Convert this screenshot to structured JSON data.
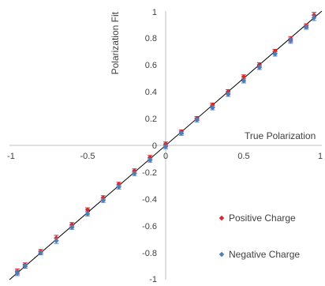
{
  "chart_data": {
    "type": "scatter",
    "title": "",
    "xlabel": "True Polarization",
    "ylabel": "Polarization Fit",
    "xlim": [
      -1,
      1
    ],
    "ylim": [
      -1,
      1
    ],
    "x_ticks": [
      "-1",
      "-0.5",
      "0",
      "0.5",
      "1"
    ],
    "y_ticks": [
      "-1",
      "-0.8",
      "-0.6",
      "-0.4",
      "-0.2",
      "0",
      "0.2",
      "0.4",
      "0.6",
      "0.8",
      "1"
    ],
    "grid": false,
    "legend_position": "bottom-right",
    "reference_line": {
      "color": "#000000",
      "from": [
        -1,
        -1
      ],
      "to": [
        1,
        1
      ]
    },
    "series": [
      {
        "name": "Positive Charge",
        "color": "#d9262a",
        "marker": "diamond",
        "x": [
          -0.95,
          -0.9,
          -0.8,
          -0.7,
          -0.6,
          -0.5,
          -0.4,
          -0.3,
          -0.2,
          -0.1,
          0.0,
          0.1,
          0.2,
          0.3,
          0.4,
          0.5,
          0.6,
          0.7,
          0.8,
          0.9,
          0.95
        ],
        "y": [
          -0.94,
          -0.89,
          -0.79,
          -0.69,
          -0.59,
          -0.48,
          -0.39,
          -0.29,
          -0.19,
          -0.09,
          0.01,
          0.1,
          0.2,
          0.3,
          0.4,
          0.51,
          0.6,
          0.7,
          0.79,
          0.89,
          0.97
        ],
        "err": [
          0.02,
          0.015,
          0.015,
          0.02,
          0.015,
          0.015,
          0.015,
          0.015,
          0.015,
          0.015,
          0.015,
          0.015,
          0.015,
          0.015,
          0.015,
          0.015,
          0.015,
          0.015,
          0.02,
          0.015,
          0.02
        ]
      },
      {
        "name": "Negative Charge",
        "color": "#4a7ebb",
        "marker": "diamond",
        "x": [
          -0.95,
          -0.9,
          -0.8,
          -0.7,
          -0.6,
          -0.5,
          -0.4,
          -0.3,
          -0.2,
          -0.1,
          0.0,
          0.1,
          0.2,
          0.3,
          0.4,
          0.5,
          0.6,
          0.7,
          0.8,
          0.9,
          0.95
        ],
        "y": [
          -0.95,
          -0.9,
          -0.8,
          -0.71,
          -0.61,
          -0.51,
          -0.41,
          -0.31,
          -0.21,
          -0.11,
          -0.01,
          0.09,
          0.19,
          0.28,
          0.38,
          0.48,
          0.58,
          0.68,
          0.78,
          0.88,
          0.95
        ],
        "err": [
          0.02,
          0.015,
          0.015,
          0.02,
          0.015,
          0.015,
          0.015,
          0.015,
          0.015,
          0.015,
          0.015,
          0.015,
          0.015,
          0.015,
          0.015,
          0.015,
          0.015,
          0.015,
          0.02,
          0.015,
          0.02
        ]
      }
    ]
  }
}
